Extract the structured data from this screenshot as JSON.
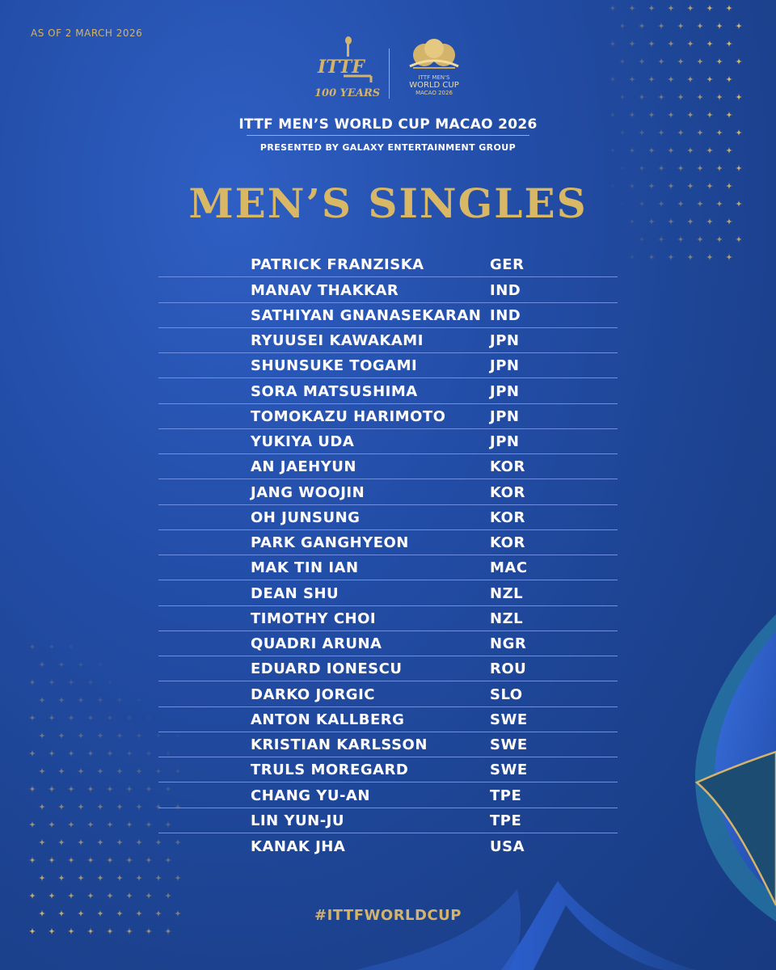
{
  "header": {
    "as_of": "AS OF 2 MARCH 2026",
    "ittf_logo_text": "ITTF",
    "ittf_anniversary": "100 YEARS",
    "worldcup_logo_line1": "ITTF MEN'S",
    "worldcup_logo_line2": "WORLD CUP",
    "worldcup_logo_line3": "MACAO 2026",
    "event_title": "ITTF MEN’S WORLD CUP MACAO 2026",
    "presented_by": "PRESENTED BY GALAXY ENTERTAINMENT GROUP"
  },
  "heading": "MEN’S SINGLES",
  "players": [
    {
      "name": "PATRICK FRANZISKA",
      "country": "GER"
    },
    {
      "name": "MANAV THAKKAR",
      "country": "IND"
    },
    {
      "name": "SATHIYAN GNANASEKARAN",
      "country": "IND"
    },
    {
      "name": "RYUUSEI KAWAKAMI",
      "country": "JPN"
    },
    {
      "name": "SHUNSUKE TOGAMI",
      "country": "JPN"
    },
    {
      "name": "SORA MATSUSHIMA",
      "country": "JPN"
    },
    {
      "name": "TOMOKAZU HARIMOTO",
      "country": "JPN"
    },
    {
      "name": "YUKIYA UDA",
      "country": "JPN"
    },
    {
      "name": "AN JAEHYUN",
      "country": "KOR"
    },
    {
      "name": "JANG WOOJIN",
      "country": "KOR"
    },
    {
      "name": "OH JUNSUNG",
      "country": "KOR"
    },
    {
      "name": "PARK GANGHYEON",
      "country": "KOR"
    },
    {
      "name": "MAK TIN IAN",
      "country": "MAC"
    },
    {
      "name": "DEAN SHU",
      "country": "NZL"
    },
    {
      "name": "TIMOTHY CHOI",
      "country": "NZL"
    },
    {
      "name": "QUADRI ARUNA",
      "country": "NGR"
    },
    {
      "name": "EDUARD IONESCU",
      "country": "ROU"
    },
    {
      "name": "DARKO JORGIC",
      "country": "SLO"
    },
    {
      "name": "ANTON KALLBERG",
      "country": "SWE"
    },
    {
      "name": "KRISTIAN KARLSSON",
      "country": "SWE"
    },
    {
      "name": "TRULS MOREGARD",
      "country": "SWE"
    },
    {
      "name": "CHANG YU-AN",
      "country": "TPE"
    },
    {
      "name": "LIN YUN-JU",
      "country": "TPE"
    },
    {
      "name": "KANAK JHA",
      "country": "USA"
    }
  ],
  "hashtag": "#ITTFWORLDCUP",
  "colors": {
    "background": "#234ea8",
    "gold": "#d4b36a",
    "divider": "#6f90e2",
    "text": "#ffffff"
  }
}
